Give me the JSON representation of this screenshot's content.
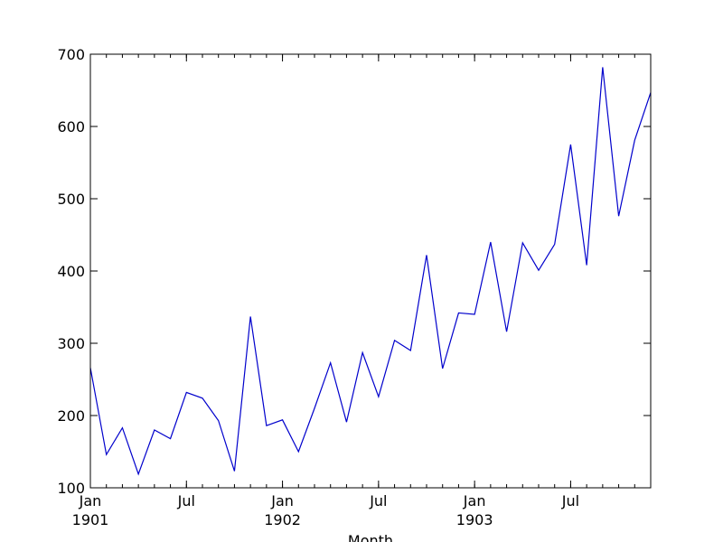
{
  "chart_data": {
    "type": "line",
    "title": "",
    "xlabel": "Month",
    "ylabel": "",
    "ylim": [
      100,
      700
    ],
    "y_ticks": [
      100,
      200,
      300,
      400,
      500,
      600,
      700
    ],
    "x_range": [
      "1901-01",
      "1903-12"
    ],
    "x_ticks": [
      {
        "month": "1901-01",
        "label": "Jan",
        "sublabel": "1901"
      },
      {
        "month": "1901-07",
        "label": "Jul",
        "sublabel": ""
      },
      {
        "month": "1902-01",
        "label": "Jan",
        "sublabel": "1902"
      },
      {
        "month": "1902-07",
        "label": "Jul",
        "sublabel": ""
      },
      {
        "month": "1903-01",
        "label": "Jan",
        "sublabel": "1903"
      },
      {
        "month": "1903-07",
        "label": "Jul",
        "sublabel": ""
      }
    ],
    "grid": false,
    "line_color": "#0000cc",
    "series": [
      {
        "x": [
          "1901-01",
          "1901-02",
          "1901-03",
          "1901-04",
          "1901-05",
          "1901-06",
          "1901-07",
          "1901-08",
          "1901-09",
          "1901-10",
          "1901-11",
          "1901-12",
          "1902-01",
          "1902-02",
          "1902-03",
          "1902-04",
          "1902-05",
          "1902-06",
          "1902-07",
          "1902-08",
          "1902-09",
          "1902-10",
          "1902-11",
          "1902-12",
          "1903-01",
          "1903-02",
          "1903-03",
          "1903-04",
          "1903-05",
          "1903-06",
          "1903-07",
          "1903-08",
          "1903-09",
          "1903-10",
          "1903-11",
          "1903-12"
        ],
        "values": [
          266,
          146,
          183,
          119,
          180,
          168,
          232,
          224,
          193,
          123,
          337,
          186,
          194,
          150,
          210,
          273,
          191,
          287,
          226,
          304,
          290,
          422,
          265,
          342,
          340,
          440,
          316,
          439,
          401,
          437,
          575,
          408,
          682,
          476,
          581,
          647
        ]
      }
    ]
  }
}
